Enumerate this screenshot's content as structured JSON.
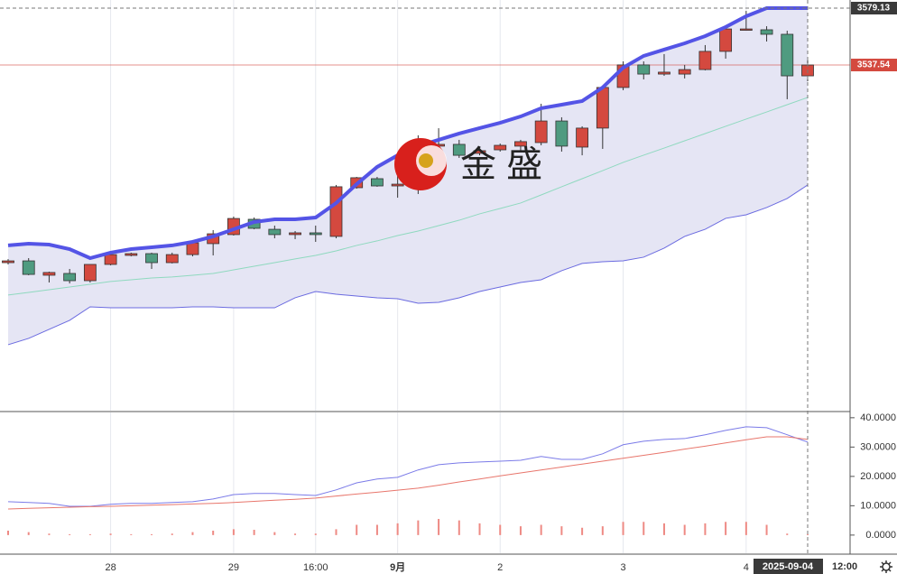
{
  "watermark": "金 盛",
  "crosshair_time": {
    "date": "2025-09-04",
    "time": "12:00"
  },
  "chart_data": [
    {
      "type": "candlestick",
      "categories": [
        null,
        null,
        null,
        null,
        null,
        "28",
        null,
        null,
        null,
        null,
        null,
        "29",
        null,
        null,
        null,
        "16:00",
        null,
        null,
        null,
        "9月",
        null,
        null,
        null,
        null,
        "2",
        null,
        null,
        null,
        null,
        null,
        "3",
        null,
        null,
        null,
        null,
        null,
        "4",
        null,
        null,
        null
      ],
      "open": [
        3393.0,
        3394.3,
        3383.8,
        3385.1,
        3379.8,
        3391.7,
        3398.3,
        3399.6,
        3393.0,
        3398.9,
        3406.9,
        3413.5,
        3424.7,
        3417.4,
        3413.5,
        3414.8,
        3412.2,
        3447.8,
        3454.4,
        3449.1,
        3453.1,
        3478.2,
        3479.5,
        3472.9,
        3475.5,
        3478.2,
        3480.8,
        3496.6,
        3477.5,
        3491.4,
        3521.1,
        3537.6,
        3530.9,
        3530.9,
        3534.2,
        3547.5,
        3563.3,
        3563.3,
        3560.0,
        3529.6
      ],
      "high": [
        3395.6,
        3396.3,
        3386.4,
        3388.4,
        3391.7,
        3400.9,
        3400.3,
        3400.3,
        3400.3,
        3409.5,
        3416.8,
        3426.7,
        3426.0,
        3420.1,
        3416.1,
        3420.1,
        3449.8,
        3455.7,
        3455.7,
        3456.4,
        3486.1,
        3491.3,
        3482.8,
        3476.2,
        3480.1,
        3482.8,
        3509.2,
        3499.3,
        3492.7,
        3522.4,
        3540.2,
        3540.2,
        3545.5,
        3537.6,
        3552.1,
        3566.6,
        3577.1,
        3565.9,
        3562.6,
        3541.5
      ],
      "low": [
        3391.7,
        3383.8,
        3378.5,
        3377.8,
        3378.5,
        3391.0,
        3397.6,
        3388.4,
        3392.4,
        3397.6,
        3398.3,
        3412.8,
        3417.4,
        3410.8,
        3410.2,
        3408.2,
        3410.8,
        3447.1,
        3448.5,
        3440.5,
        3443.2,
        3467.6,
        3469.6,
        3471.5,
        3474.2,
        3474.2,
        3478.8,
        3474.2,
        3471.5,
        3476.2,
        3519.1,
        3527.0,
        3529.6,
        3527.7,
        3533.6,
        3542.2,
        3562.6,
        3554.7,
        3512.5,
        3525.7
      ],
      "close": [
        3394.3,
        3384.4,
        3385.8,
        3379.8,
        3391.7,
        3398.9,
        3399.6,
        3393.0,
        3398.9,
        3407.5,
        3414.1,
        3425.3,
        3418.1,
        3413.5,
        3414.8,
        3413.5,
        3448.5,
        3455.1,
        3449.1,
        3450.4,
        3476.2,
        3479.5,
        3471.5,
        3474.9,
        3478.8,
        3481.5,
        3496.6,
        3478.2,
        3491.4,
        3521.1,
        3537.6,
        3530.9,
        3532.3,
        3534.2,
        3547.5,
        3563.9,
        3563.9,
        3560.0,
        3529.6,
        3537.54
      ],
      "up_color": "#d4493f",
      "down_color": "#4f9b80",
      "upper_band": {
        "color": "#5454e6",
        "values": [
          3405.6,
          3406.9,
          3406.2,
          3402.9,
          3396.3,
          3400.3,
          3402.9,
          3404.2,
          3405.6,
          3408.2,
          3412.2,
          3417.4,
          3422.7,
          3424.7,
          3424.7,
          3426.0,
          3436.6,
          3450.4,
          3463.0,
          3471.5,
          3478.2,
          3482.8,
          3487.4,
          3491.4,
          3495.3,
          3499.9,
          3505.9,
          3508.5,
          3511.2,
          3521.1,
          3535.6,
          3544.2,
          3548.8,
          3553.4,
          3558.7,
          3565.3,
          3573.2,
          3579.13,
          3579.13,
          3579.13
        ]
      },
      "middle_band": {
        "color": "#8fd9bf",
        "values": [
          3369.3,
          3371.2,
          3373.2,
          3375.2,
          3377.2,
          3379.2,
          3380.5,
          3381.8,
          3382.5,
          3383.8,
          3385.1,
          3387.7,
          3390.4,
          3393.0,
          3395.7,
          3398.3,
          3401.6,
          3405.6,
          3408.9,
          3412.8,
          3416.1,
          3420.1,
          3424.0,
          3428.7,
          3432.6,
          3436.6,
          3442.5,
          3448.5,
          3454.4,
          3460.3,
          3466.3,
          3471.6,
          3476.8,
          3482.1,
          3487.4,
          3492.7,
          3498.0,
          3503.2,
          3508.5,
          3513.8
        ]
      },
      "lower_band": {
        "color": "#6a6ae0",
        "values": [
          3333.0,
          3337.6,
          3344.2,
          3350.8,
          3360.7,
          3360.0,
          3360.0,
          3360.0,
          3360.0,
          3360.7,
          3360.7,
          3360.0,
          3360.0,
          3360.0,
          3367.3,
          3371.9,
          3369.9,
          3368.6,
          3367.3,
          3366.6,
          3363.3,
          3364.0,
          3367.3,
          3371.9,
          3375.2,
          3378.5,
          3380.5,
          3387.1,
          3392.4,
          3393.7,
          3394.3,
          3397.0,
          3403.6,
          3412.2,
          3417.4,
          3425.4,
          3428.0,
          3433.3,
          3439.9,
          3449.8
        ]
      },
      "band_fill": "#e5e5f4",
      "ylim": [
        3284.77,
        3585.07
      ],
      "last_price": 3537.54,
      "last_price_color": "#d4493f",
      "crosshair_price": 3579.13,
      "grid": true
    },
    {
      "type": "indicator",
      "lines": [
        {
          "color": "#7b7be8",
          "values": [
            11.4,
            11.1,
            10.8,
            9.8,
            9.8,
            10.5,
            10.8,
            10.8,
            11.1,
            11.4,
            12.3,
            13.8,
            14.2,
            14.2,
            13.8,
            13.5,
            15.4,
            17.8,
            19.1,
            19.7,
            22.2,
            24.0,
            24.6,
            24.9,
            25.2,
            25.5,
            26.8,
            25.8,
            25.8,
            27.7,
            30.8,
            32.0,
            32.6,
            32.9,
            34.2,
            35.7,
            36.9,
            36.6,
            34.2,
            31.7
          ]
        },
        {
          "color": "#e8766c",
          "values": [
            8.9,
            9.1,
            9.3,
            9.5,
            9.7,
            9.8,
            10.0,
            10.2,
            10.4,
            10.6,
            10.8,
            11.1,
            11.5,
            11.9,
            12.2,
            12.6,
            13.3,
            14.0,
            14.6,
            15.3,
            16.0,
            17.0,
            18.1,
            19.1,
            20.2,
            21.2,
            22.2,
            23.2,
            24.2,
            25.2,
            26.2,
            27.2,
            28.2,
            29.3,
            30.3,
            31.4,
            32.5,
            33.5,
            33.5,
            32.6
          ]
        }
      ],
      "bars": {
        "color": "#ee8a84",
        "values": [
          1.5,
          1.0,
          0.5,
          0.3,
          0.3,
          0.5,
          0.3,
          0.3,
          0.5,
          1.0,
          1.5,
          2.0,
          1.8,
          1.0,
          0.5,
          0.5,
          2.0,
          3.5,
          3.5,
          4.0,
          5.0,
          5.5,
          5.0,
          4.0,
          3.5,
          3.0,
          3.5,
          3.0,
          2.5,
          3.0,
          4.5,
          4.5,
          4.0,
          3.5,
          4.0,
          4.5,
          4.5,
          3.5,
          0.5,
          0.3
        ]
      },
      "ylim": [
        -6.5,
        41.8
      ],
      "yticks": [
        {
          "value": 40,
          "label": "40.0000"
        },
        {
          "value": 30,
          "label": "30.0000"
        },
        {
          "value": 20,
          "label": "20.0000"
        },
        {
          "value": 10,
          "label": "10.0000"
        },
        {
          "value": 0,
          "label": "0.0000"
        }
      ]
    }
  ]
}
